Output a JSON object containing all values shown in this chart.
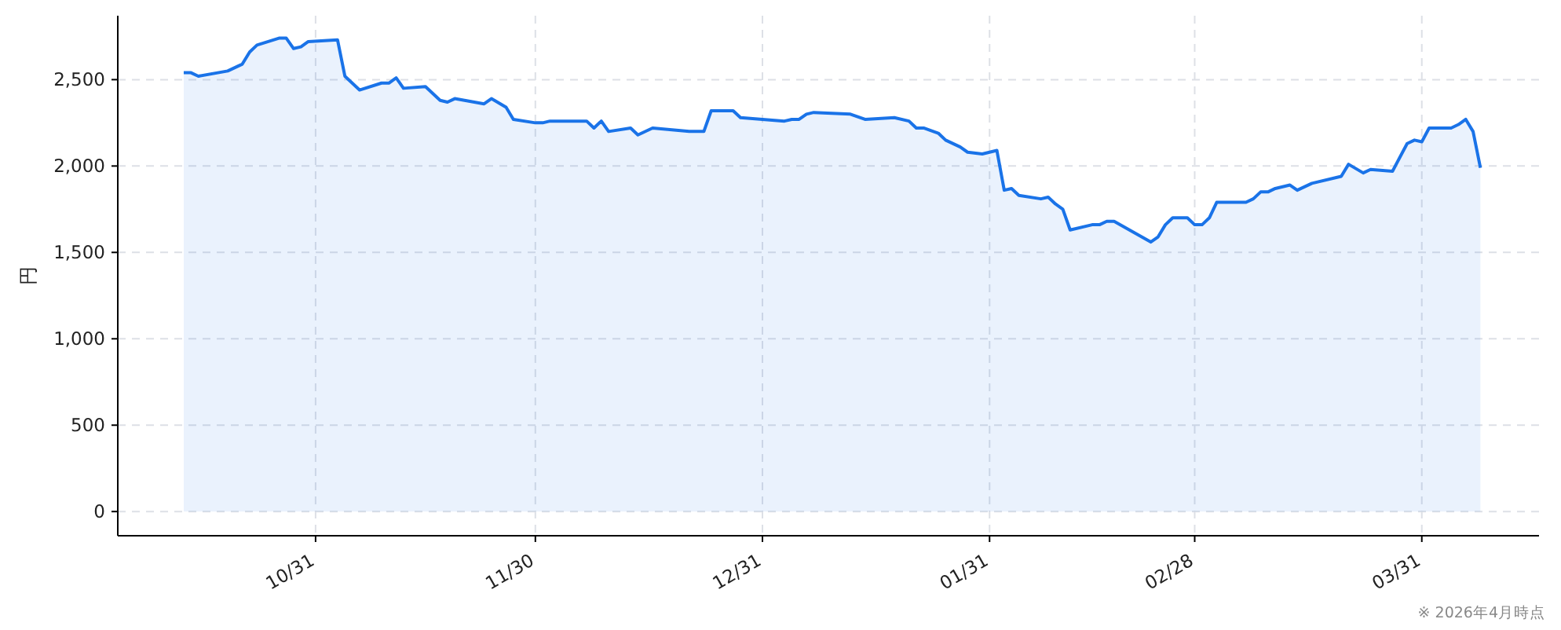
{
  "chart_data": {
    "type": "area",
    "ylabel": "円",
    "annotations": [
      "※ 2026年4月時点"
    ],
    "x": [
      "2025-10-13",
      "2025-10-14",
      "2025-10-15",
      "2025-10-19",
      "2025-10-21",
      "2025-10-22",
      "2025-10-23",
      "2025-10-26",
      "2025-10-27",
      "2025-10-28",
      "2025-10-29",
      "2025-10-30",
      "2025-11-03",
      "2025-11-04",
      "2025-11-06",
      "2025-11-09",
      "2025-11-10",
      "2025-11-11",
      "2025-11-12",
      "2025-11-15",
      "2025-11-17",
      "2025-11-18",
      "2025-11-19",
      "2025-11-23",
      "2025-11-24",
      "2025-11-26",
      "2025-11-27",
      "2025-11-30",
      "2025-12-01",
      "2025-12-02",
      "2025-12-07",
      "2025-12-08",
      "2025-12-09",
      "2025-12-10",
      "2025-12-13",
      "2025-12-14",
      "2025-12-16",
      "2025-12-21",
      "2025-12-22",
      "2025-12-23",
      "2025-12-24",
      "2025-12-27",
      "2025-12-28",
      "2026-01-03",
      "2026-01-04",
      "2026-01-05",
      "2026-01-06",
      "2026-01-07",
      "2026-01-12",
      "2026-01-14",
      "2026-01-18",
      "2026-01-20",
      "2026-01-21",
      "2026-01-22",
      "2026-01-24",
      "2026-01-25",
      "2026-01-27",
      "2026-01-28",
      "2026-01-30",
      "2026-02-01",
      "2026-02-02",
      "2026-02-03",
      "2026-02-04",
      "2026-02-07",
      "2026-02-08",
      "2026-02-09",
      "2026-02-10",
      "2026-02-11",
      "2026-02-14",
      "2026-02-15",
      "2026-02-16",
      "2026-02-17",
      "2026-02-22",
      "2026-02-23",
      "2026-02-24",
      "2026-02-25",
      "2026-02-27",
      "2026-02-28",
      "2026-03-01",
      "2026-03-02",
      "2026-03-03",
      "2026-03-06",
      "2026-03-07",
      "2026-03-08",
      "2026-03-09",
      "2026-03-10",
      "2026-03-11",
      "2026-03-13",
      "2026-03-14",
      "2026-03-16",
      "2026-03-20",
      "2026-03-21",
      "2026-03-23",
      "2026-03-24",
      "2026-03-27",
      "2026-03-29",
      "2026-03-30",
      "2026-03-31",
      "2026-04-01",
      "2026-04-04",
      "2026-04-05",
      "2026-04-06",
      "2026-04-07",
      "2026-04-08"
    ],
    "series": [
      {
        "color": "#1a73e8",
        "values": [
          2540,
          2540,
          2520,
          2550,
          2590,
          2660,
          2700,
          2740,
          2740,
          2680,
          2690,
          2720,
          2730,
          2520,
          2440,
          2480,
          2480,
          2510,
          2450,
          2460,
          2380,
          2370,
          2390,
          2360,
          2390,
          2340,
          2270,
          2250,
          2250,
          2260,
          2260,
          2220,
          2260,
          2200,
          2220,
          2180,
          2220,
          2200,
          2200,
          2200,
          2320,
          2320,
          2280,
          2260,
          2270,
          2270,
          2300,
          2310,
          2300,
          2270,
          2280,
          2260,
          2220,
          2220,
          2190,
          2150,
          2110,
          2080,
          2070,
          2090,
          1860,
          1870,
          1830,
          1810,
          1820,
          1780,
          1750,
          1630,
          1660,
          1660,
          1680,
          1680,
          1560,
          1590,
          1660,
          1700,
          1700,
          1660,
          1660,
          1700,
          1790,
          1790,
          1790,
          1810,
          1850,
          1850,
          1870,
          1890,
          1860,
          1900,
          1940,
          2010,
          1960,
          1980,
          1970,
          2130,
          2150,
          2140,
          2220,
          2220,
          2240,
          2270,
          2200,
          1990
        ]
      }
    ],
    "xlim": [
      "2025-10-04",
      "2026-04-16"
    ],
    "ylim": [
      -140,
      2870
    ],
    "xticks": [
      {
        "value": "2025-10-31",
        "label": "10/31"
      },
      {
        "value": "2025-11-30",
        "label": "11/30"
      },
      {
        "value": "2025-12-31",
        "label": "12/31"
      },
      {
        "value": "2026-01-31",
        "label": "01/31"
      },
      {
        "value": "2026-02-28",
        "label": "02/28"
      },
      {
        "value": "2026-03-31",
        "label": "03/31"
      }
    ],
    "yticks": [
      {
        "value": 0,
        "label": "0"
      },
      {
        "value": 500,
        "label": "500"
      },
      {
        "value": 1000,
        "label": "1,000"
      },
      {
        "value": 1500,
        "label": "1,500"
      },
      {
        "value": 2000,
        "label": "2,000"
      },
      {
        "value": 2500,
        "label": "2,500"
      }
    ],
    "grid": true,
    "marker": "none",
    "line_style": "solid"
  }
}
